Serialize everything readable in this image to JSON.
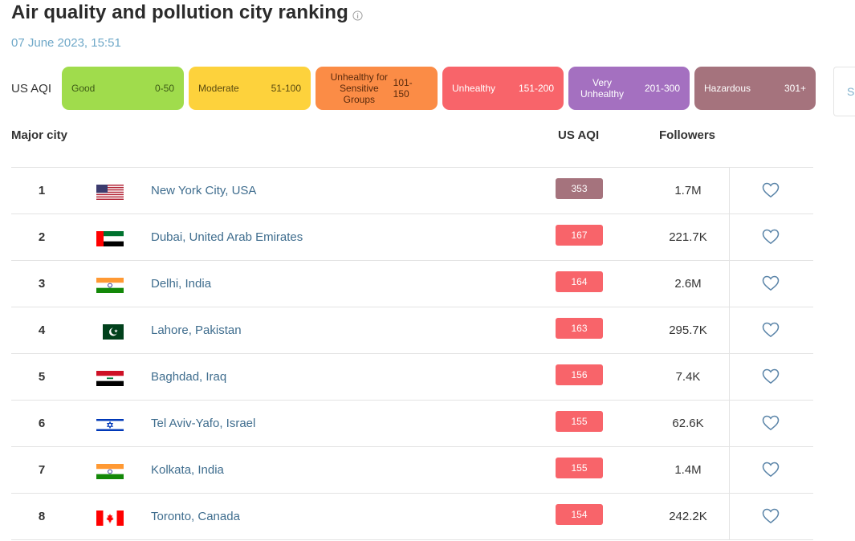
{
  "header": {
    "title": "Air quality and pollution city ranking",
    "date": "07 June 2023, 15:51"
  },
  "legend": {
    "label": "US AQI",
    "levels": [
      {
        "name": "Good",
        "range": "0-50",
        "color": "#a0dc4c"
      },
      {
        "name": "Moderate",
        "range": "51-100",
        "color": "#fdd23c"
      },
      {
        "name": "Unhealthy for Sensitive Groups",
        "range": "101-150",
        "color": "#fb8c46"
      },
      {
        "name": "Unhealthy",
        "range": "151-200",
        "color": "#f8646a"
      },
      {
        "name": "Very Unhealthy",
        "range": "201-300",
        "color": "#a470c0"
      },
      {
        "name": "Hazardous",
        "range": "301+",
        "color": "#a5737d"
      }
    ]
  },
  "side_tab": {
    "text": "Sh"
  },
  "table": {
    "headers": {
      "city": "Major city",
      "aqi": "US AQI",
      "followers": "Followers"
    },
    "rows": [
      {
        "rank": "1",
        "flag": "usa",
        "city": "New York City, USA",
        "aqi": "353",
        "aqi_color": "#a5737d",
        "followers": "1.7M"
      },
      {
        "rank": "2",
        "flag": "uae",
        "city": "Dubai, United Arab Emirates",
        "aqi": "167",
        "aqi_color": "#f8646a",
        "followers": "221.7K"
      },
      {
        "rank": "3",
        "flag": "india",
        "city": "Delhi, India",
        "aqi": "164",
        "aqi_color": "#f8646a",
        "followers": "2.6M"
      },
      {
        "rank": "4",
        "flag": "pakistan",
        "city": "Lahore, Pakistan",
        "aqi": "163",
        "aqi_color": "#f8646a",
        "followers": "295.7K"
      },
      {
        "rank": "5",
        "flag": "iraq",
        "city": "Baghdad, Iraq",
        "aqi": "156",
        "aqi_color": "#f8646a",
        "followers": "7.4K"
      },
      {
        "rank": "6",
        "flag": "israel",
        "city": "Tel Aviv-Yafo, Israel",
        "aqi": "155",
        "aqi_color": "#f8646a",
        "followers": "62.6K"
      },
      {
        "rank": "7",
        "flag": "india",
        "city": "Kolkata, India",
        "aqi": "155",
        "aqi_color": "#f8646a",
        "followers": "1.4M"
      },
      {
        "rank": "8",
        "flag": "canada",
        "city": "Toronto, Canada",
        "aqi": "154",
        "aqi_color": "#f8646a",
        "followers": "242.2K"
      }
    ]
  },
  "icons": {
    "info": "info-icon",
    "follow": "heart-icon"
  }
}
